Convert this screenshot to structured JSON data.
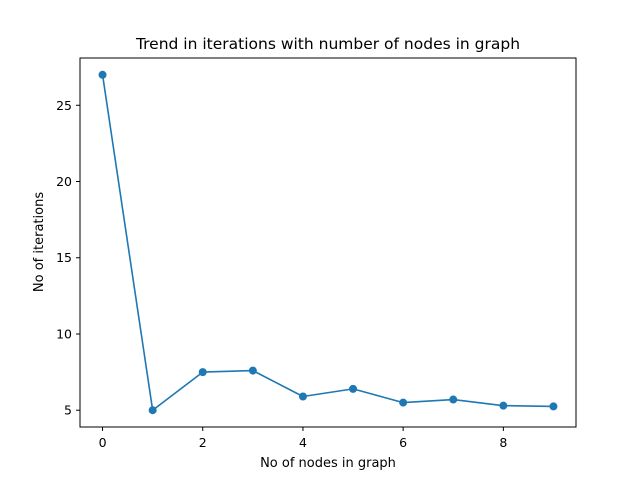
{
  "chart_data": {
    "type": "line",
    "title": "Trend in iterations with number of nodes in graph",
    "xlabel": "No of nodes in graph",
    "ylabel": "No of iterations",
    "x": [
      0,
      1,
      2,
      3,
      4,
      5,
      6,
      7,
      8,
      9
    ],
    "series": [
      {
        "values": [
          27.0,
          5.0,
          7.5,
          7.6,
          5.9,
          6.4,
          5.5,
          5.7,
          5.3,
          5.25
        ]
      }
    ],
    "xlim": [
      -0.45,
      9.45
    ],
    "ylim": [
      3.9,
      28.1
    ],
    "xticks": [
      0,
      2,
      4,
      6,
      8
    ],
    "yticks": [
      5,
      10,
      15,
      20,
      25
    ],
    "grid": false,
    "markers": true,
    "line_color": "#1f77b4",
    "axis_color": "#000000"
  }
}
